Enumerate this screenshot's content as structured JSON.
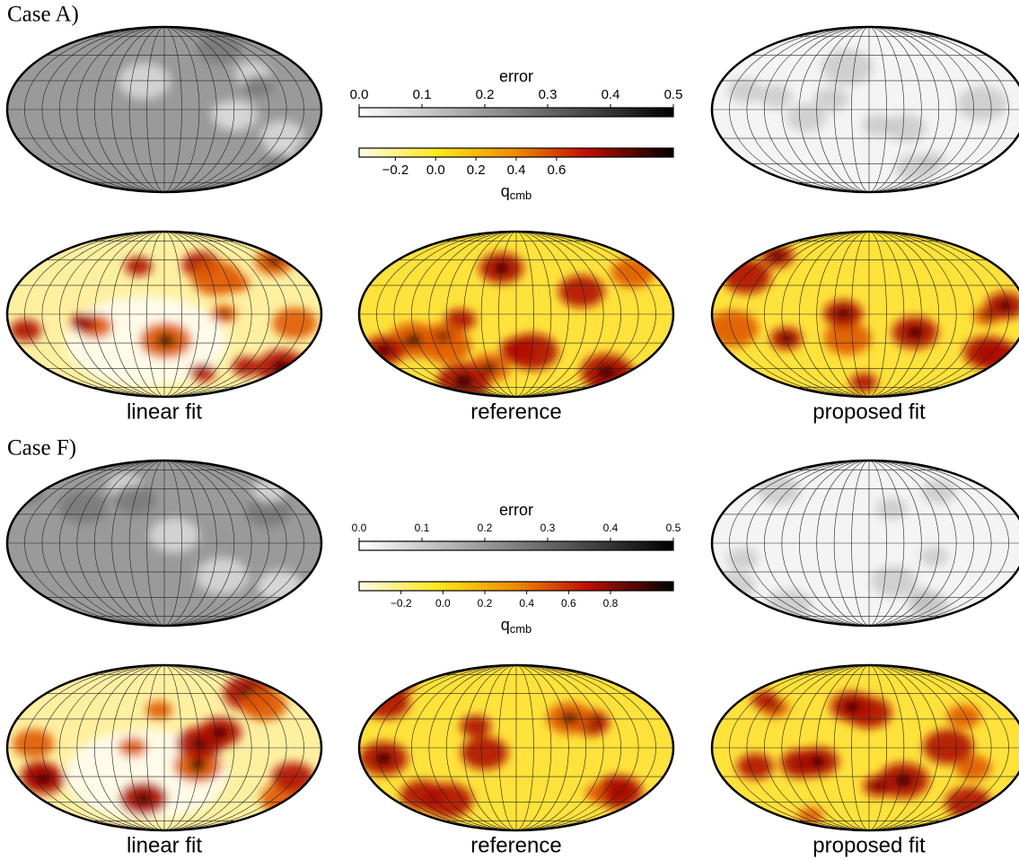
{
  "panels": [
    {
      "label": "Case A)",
      "error_colorbar": {
        "title": "error",
        "lim": [
          0,
          0.5
        ],
        "ticks": [
          {
            "value": 0,
            "label": "0.0"
          },
          0.1,
          0.2,
          0.3,
          0.4,
          0.5
        ]
      },
      "q_colorbar": {
        "title": {
          "symbol": "q",
          "subscript": "cmb"
        },
        "lim": [
          -0.38,
          1.18
        ],
        "ticks": [
          {
            "value": -0.2,
            "label": "−0.2"
          },
          {
            "value": 0,
            "label": "0.0"
          },
          0.2,
          0.4,
          0.6
        ]
      },
      "map_labels": [
        "linear fit",
        "reference",
        "proposed fit"
      ]
    },
    {
      "label": "Case F)",
      "error_colorbar": {
        "title": "error",
        "lim": [
          0,
          0.5
        ],
        "ticks": [
          {
            "value": 0,
            "label": "0.0"
          },
          0.1,
          0.2,
          0.3,
          0.4,
          0.5
        ]
      },
      "q_colorbar": {
        "title": {
          "symbol": "q",
          "subscript": "cmb"
        },
        "lim": [
          -0.4,
          1.1
        ],
        "ticks": [
          {
            "value": -0.2,
            "label": "−0.2"
          },
          {
            "value": 0,
            "label": "0.0"
          },
          0.2,
          0.4,
          0.6,
          0.8
        ]
      },
      "map_labels": [
        "linear fit",
        "reference",
        "proposed fit"
      ]
    }
  ]
}
